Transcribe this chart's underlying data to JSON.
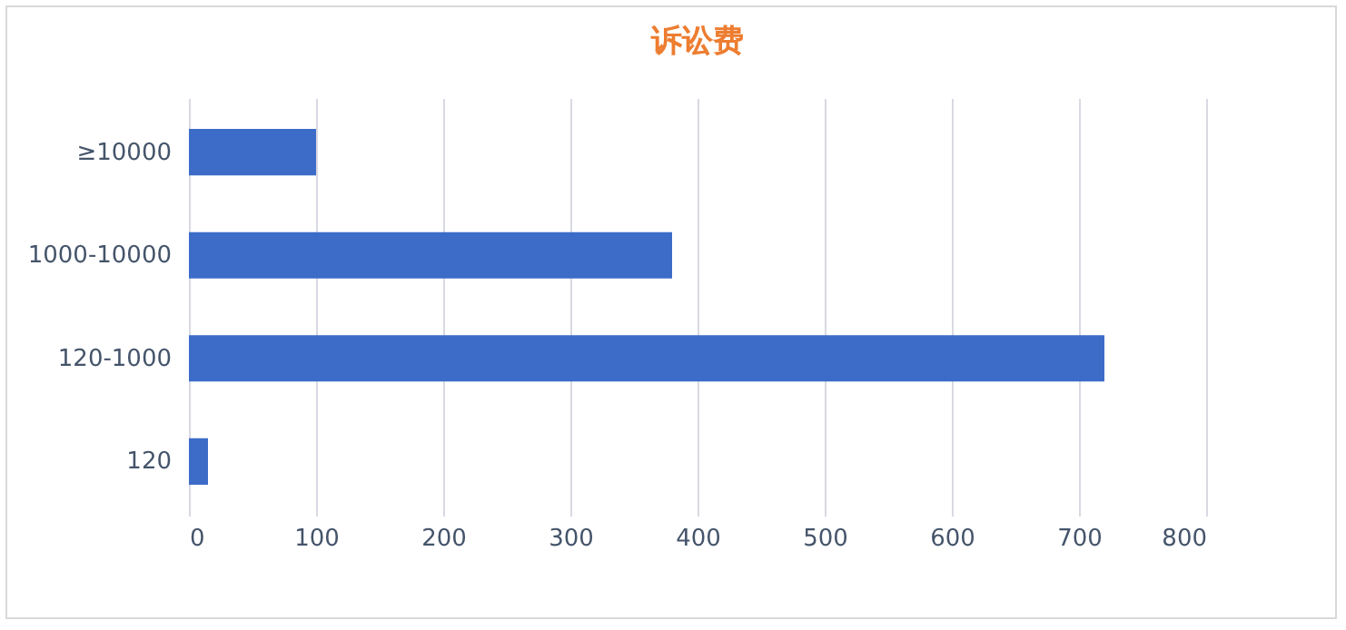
{
  "chart_data": {
    "type": "bar",
    "orientation": "horizontal",
    "title": "诉讼费",
    "categories": [
      "≥10000",
      "1000-10000",
      "120-1000",
      "120"
    ],
    "values": [
      100,
      380,
      720,
      15
    ],
    "color": "#3c6cc8",
    "xlim": [
      0,
      800
    ],
    "xticks": [
      0,
      100,
      200,
      300,
      400,
      500,
      600,
      700,
      800
    ],
    "grid": "x"
  }
}
